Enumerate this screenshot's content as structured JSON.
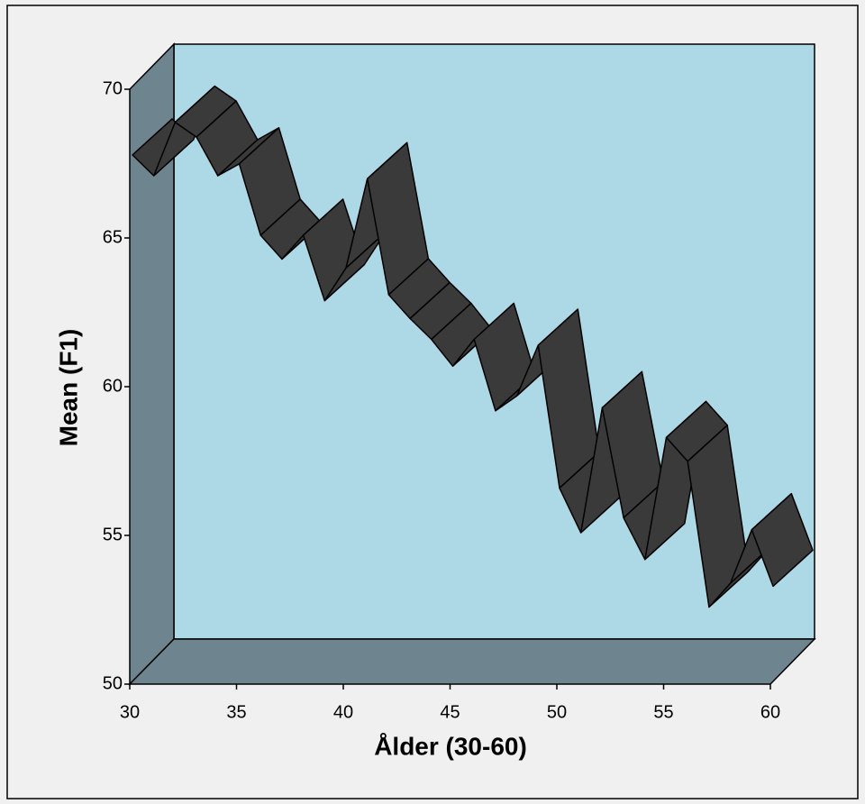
{
  "chart_data": {
    "type": "line3d",
    "x_label": "Ålder (30-60)",
    "y_label": "Mean (F1)",
    "x": [
      30,
      31,
      32,
      33,
      34,
      35,
      36,
      37,
      38,
      39,
      40,
      41,
      42,
      43,
      44,
      45,
      46,
      47,
      48,
      49,
      50,
      51,
      52,
      53,
      54,
      55,
      56,
      57,
      58,
      59,
      60
    ],
    "series": [
      {
        "color": "#3a3a3a",
        "values": [
          67.7,
          67.0,
          68.8,
          68.3,
          67.0,
          67.4,
          65.0,
          64.2,
          65.0,
          62.8,
          63.9,
          66.9,
          63.0,
          62.2,
          61.5,
          60.6,
          61.5,
          59.1,
          59.6,
          61.3,
          56.5,
          55.0,
          59.2,
          55.5,
          54.1,
          58.2,
          57.4,
          52.5,
          53.3,
          55.1,
          53.2
        ]
      }
    ],
    "xlim": [
      30,
      60
    ],
    "ylim": [
      50,
      70
    ],
    "xticks": [
      30,
      35,
      40,
      45,
      50,
      55,
      60
    ],
    "yticks": [
      50,
      55,
      60,
      65,
      70
    ],
    "wall_color": "#add8e6",
    "side_color": "#6e8590"
  }
}
